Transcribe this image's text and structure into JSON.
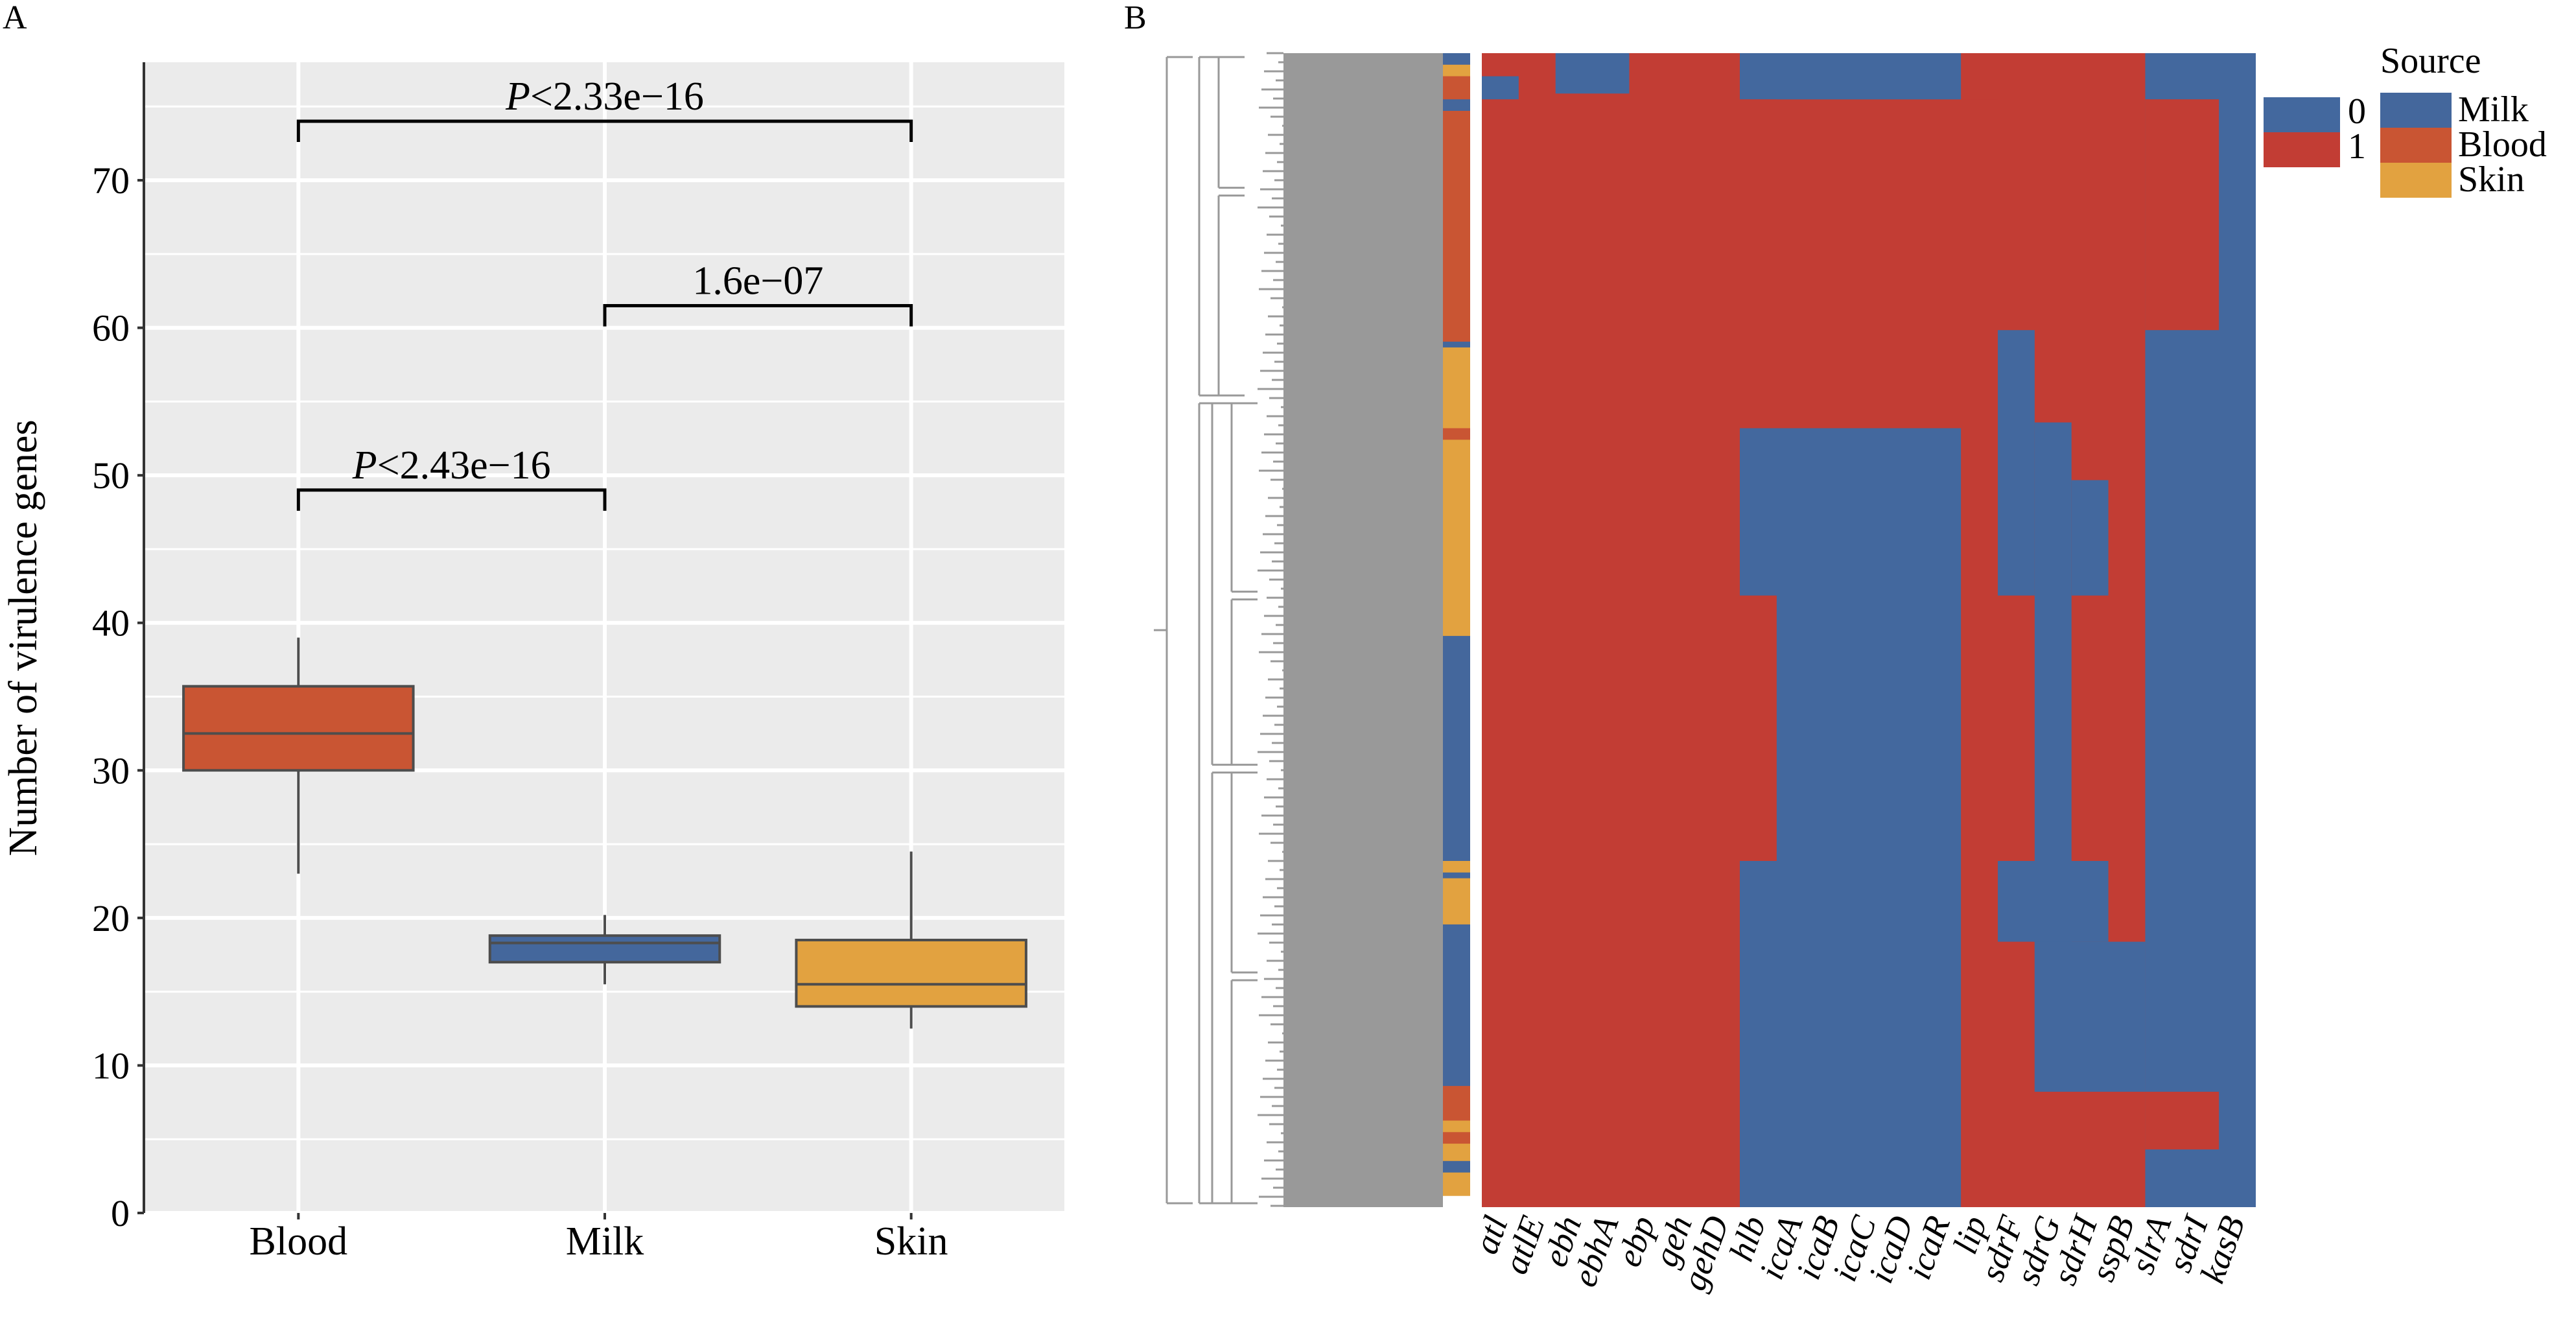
{
  "colors": {
    "blood": "#c95533",
    "milk": "#44679c",
    "skin": "#e2a240",
    "heat_0": "#43689e",
    "heat_1": "#c23d34",
    "panel_bg": "#ebebeb",
    "grid": "#ffffff",
    "dendrogram": "#999999"
  },
  "panel_a": {
    "label": "A"
  },
  "panel_b": {
    "label": "B"
  },
  "chart_data": [
    {
      "type": "box",
      "panel": "A",
      "title": "",
      "xlabel": "",
      "ylabel": "Number of virulence genes",
      "ylim": [
        0,
        78
      ],
      "yticks": [
        0,
        10,
        20,
        30,
        40,
        50,
        60,
        70
      ],
      "grid": true,
      "categories": [
        "Blood",
        "Milk",
        "Skin"
      ],
      "series": [
        {
          "category": "Blood",
          "whisker_low": 23,
          "q1": 30,
          "median": 32.5,
          "q3": 35.7,
          "whisker_high": 39,
          "color_key": "blood"
        },
        {
          "category": "Milk",
          "whisker_low": 15.5,
          "q1": 17,
          "median": 18.3,
          "q3": 18.8,
          "whisker_high": 20.2,
          "color_key": "milk"
        },
        {
          "category": "Skin",
          "whisker_low": 12.5,
          "q1": 14,
          "median": 15.5,
          "q3": 18.5,
          "whisker_high": 24.5,
          "color_key": "skin"
        }
      ],
      "comparisons": [
        {
          "from": "Blood",
          "to": "Skin",
          "y": 74,
          "label_prefix": "P",
          "label_rest": "<2.33e−16"
        },
        {
          "from": "Milk",
          "to": "Skin",
          "y": 61.5,
          "label_prefix": "",
          "label_rest": "1.6e−07"
        },
        {
          "from": "Blood",
          "to": "Milk",
          "y": 49,
          "label_prefix": "P",
          "label_rest": "<2.43e−16"
        }
      ]
    },
    {
      "type": "heatmap",
      "panel": "B",
      "genes": [
        "atl",
        "atlE",
        "ebh",
        "ebhA",
        "ebp",
        "geh",
        "gehD",
        "hlb",
        "icaA",
        "icaB",
        "icaC",
        "icaD",
        "icaR",
        "lip",
        "sdrF",
        "sdrG",
        "sdrH",
        "sspB",
        "slrA",
        "sdrI",
        "kasB"
      ],
      "values_legend": [
        "0",
        "1"
      ],
      "source_legend_title": "Source",
      "sources": [
        "Milk",
        "Blood",
        "Skin"
      ],
      "row_source_blocks": [
        {
          "source": "Milk",
          "fraction": 0.01
        },
        {
          "source": "Skin",
          "fraction": 0.01
        },
        {
          "source": "Blood",
          "fraction": 0.02
        },
        {
          "source": "Milk",
          "fraction": 0.01
        },
        {
          "source": "Blood",
          "fraction": 0.2
        },
        {
          "source": "Milk",
          "fraction": 0.005
        },
        {
          "source": "Skin",
          "fraction": 0.07
        },
        {
          "source": "Blood",
          "fraction": 0.01
        },
        {
          "source": "Skin",
          "fraction": 0.17
        },
        {
          "source": "Milk",
          "fraction": 0.195
        },
        {
          "source": "Skin",
          "fraction": 0.01
        },
        {
          "source": "Milk",
          "fraction": 0.005
        },
        {
          "source": "Skin",
          "fraction": 0.04
        },
        {
          "source": "Milk",
          "fraction": 0.14
        },
        {
          "source": "Blood",
          "fraction": 0.03
        },
        {
          "source": "Skin",
          "fraction": 0.01
        },
        {
          "source": "Blood",
          "fraction": 0.01
        },
        {
          "source": "Skin",
          "fraction": 0.015
        },
        {
          "source": "Milk",
          "fraction": 0.01
        },
        {
          "source": "Skin",
          "fraction": 0.02
        }
      ],
      "presence_regions": [
        {
          "gene_from": "atl",
          "gene_to": "kasB",
          "row_from": 0.0,
          "row_to": 1.0,
          "value": 1
        },
        {
          "gene_from": "hlb",
          "gene_to": "icaR",
          "row_from": 0.325,
          "row_to": 1.0,
          "value": 0
        },
        {
          "gene_from": "icaA",
          "gene_to": "icaR",
          "row_from": 0.0,
          "row_to": 0.04,
          "value": 0
        },
        {
          "gene_from": "lip",
          "gene_to": "lip",
          "row_from": 0.0,
          "row_to": 0.04,
          "value": 1
        },
        {
          "gene_from": "hlb",
          "gene_to": "icaR",
          "row_from": 0.0,
          "row_to": 0.04,
          "value": 0
        },
        {
          "gene_from": "atl",
          "gene_to": "atl",
          "row_from": 0.02,
          "row_to": 0.04,
          "value": 0
        },
        {
          "gene_from": "ebh",
          "gene_to": "ebhA",
          "row_from": 0.0,
          "row_to": 0.035,
          "value": 0
        },
        {
          "gene_from": "slrA",
          "gene_to": "kasB",
          "row_from": 0.0,
          "row_to": 1.0,
          "value": 0
        },
        {
          "gene_from": "slrA",
          "gene_to": "sdrI",
          "row_from": 0.04,
          "row_to": 0.24,
          "value": 1
        },
        {
          "gene_from": "sdrF",
          "gene_to": "sdrF",
          "row_from": 0.24,
          "row_to": 0.47,
          "value": 0
        },
        {
          "gene_from": "sdrG",
          "gene_to": "sdrG",
          "row_from": 0.32,
          "row_to": 0.9,
          "value": 0
        },
        {
          "gene_from": "sdrH",
          "gene_to": "sdrH",
          "row_from": 0.37,
          "row_to": 0.47,
          "value": 0
        },
        {
          "gene_from": "sdrF",
          "gene_to": "sdrH",
          "row_from": 0.7,
          "row_to": 0.77,
          "value": 0
        },
        {
          "gene_from": "sdrG",
          "gene_to": "sspB",
          "row_from": 0.77,
          "row_to": 0.9,
          "value": 0
        },
        {
          "gene_from": "slrA",
          "gene_to": "sdrI",
          "row_from": 0.9,
          "row_to": 0.95,
          "value": 1
        },
        {
          "gene_from": "hlb",
          "gene_to": "hlb",
          "row_from": 0.47,
          "row_to": 0.7,
          "value": 1
        }
      ]
    }
  ]
}
